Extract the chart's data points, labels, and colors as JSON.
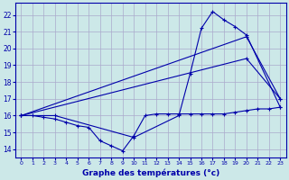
{
  "background_color": "#cce8e8",
  "grid_color": "#aaaacc",
  "line_color": "#0000aa",
  "xlabel": "Graphe des températures (°c)",
  "xlim": [
    -0.5,
    23.5
  ],
  "ylim": [
    13.5,
    22.7
  ],
  "yticks": [
    14,
    15,
    16,
    17,
    18,
    19,
    20,
    21,
    22
  ],
  "xticks": [
    0,
    1,
    2,
    3,
    4,
    5,
    6,
    7,
    8,
    9,
    10,
    11,
    12,
    13,
    14,
    15,
    16,
    17,
    18,
    19,
    20,
    21,
    22,
    23
  ],
  "series": [
    {
      "x": [
        0,
        1,
        2,
        3,
        4,
        5,
        6,
        7,
        8,
        9,
        10,
        11,
        12,
        13,
        14,
        15,
        16,
        17,
        18,
        19,
        20,
        21,
        22,
        23
      ],
      "y": [
        16.0,
        16.0,
        15.9,
        15.8,
        15.6,
        15.4,
        15.3,
        14.5,
        14.2,
        13.9,
        14.8,
        16.0,
        16.1,
        16.1,
        16.1,
        16.1,
        16.1,
        16.1,
        16.1,
        16.2,
        16.3,
        16.4,
        16.4,
        16.5
      ]
    },
    {
      "x": [
        0,
        3,
        10,
        14,
        15,
        16,
        17,
        18,
        19,
        20,
        23
      ],
      "y": [
        16.0,
        16.0,
        14.7,
        16.0,
        18.5,
        21.2,
        22.2,
        21.7,
        21.3,
        20.8,
        16.5
      ]
    },
    {
      "x": [
        0,
        20,
        23
      ],
      "y": [
        16.0,
        19.4,
        17.0
      ]
    },
    {
      "x": [
        0,
        20,
        23
      ],
      "y": [
        16.0,
        20.7,
        17.0
      ]
    }
  ]
}
